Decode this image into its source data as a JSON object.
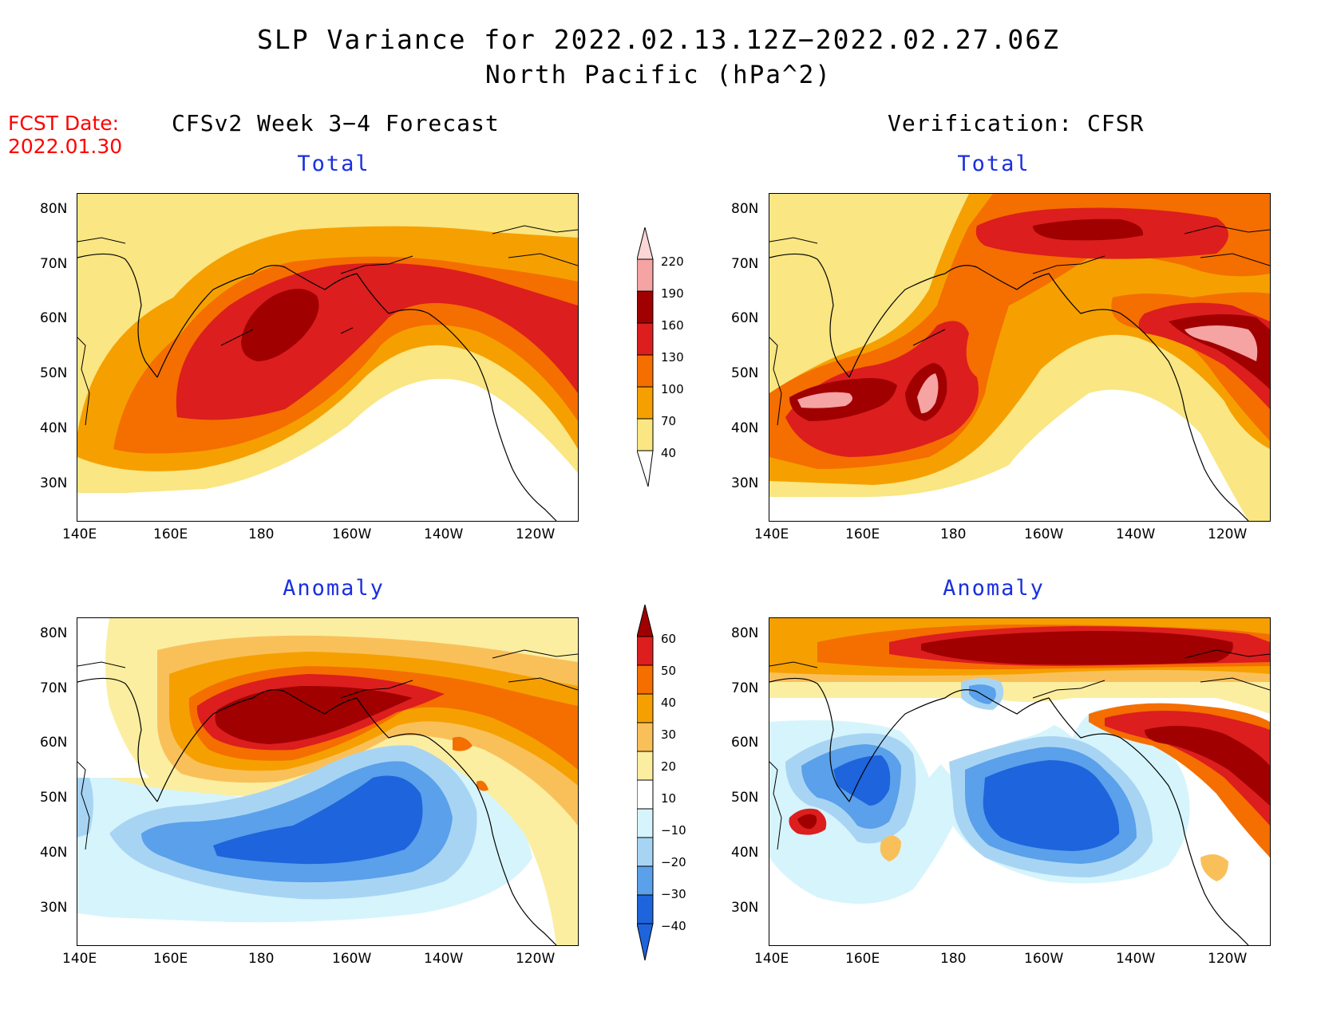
{
  "title": {
    "line1": "SLP Variance for 2022.02.13.12Z−2022.02.27.06Z",
    "line2": "North Pacific (hPa^2)"
  },
  "fcst": {
    "line1": "FCST Date:",
    "line2": "2022.01.30"
  },
  "left_header": "CFSv2 Week 3−4 Forecast",
  "right_header": "Verification: CFSR",
  "panels": {
    "tl": {
      "title": "Total"
    },
    "tr": {
      "title": "Total"
    },
    "bl": {
      "title": "Anomaly"
    },
    "br": {
      "title": "Anomaly"
    }
  },
  "axes": {
    "lat_labels": [
      "80N",
      "70N",
      "60N",
      "50N",
      "40N",
      "30N"
    ],
    "lon_labels": [
      "140E",
      "160E",
      "180",
      "160W",
      "140W",
      "120W"
    ]
  },
  "colorbar_total": {
    "labels": [
      "220",
      "190",
      "160",
      "130",
      "100",
      "70",
      "40"
    ],
    "colors": [
      "#f5a3a3",
      "#a00000",
      "#dc1e1e",
      "#f56e00",
      "#f5a000",
      "#fae682"
    ]
  },
  "colorbar_anomaly": {
    "labels": [
      "60",
      "50",
      "40",
      "30",
      "20",
      "10",
      "−10",
      "−20",
      "−30",
      "−40"
    ],
    "colors": [
      "#a00000",
      "#dc1e1e",
      "#f56e00",
      "#f5a000",
      "#f9c05a",
      "#fbeea0",
      "#ffffff",
      "#d6f4fc",
      "#a8d4f4",
      "#5aa0ea",
      "#1e64dc"
    ]
  },
  "chart_data": [
    {
      "type": "heatmap",
      "title": "Total",
      "xlabel": "",
      "ylabel": "",
      "xlim": [
        "140E",
        "110W"
      ],
      "ylim": [
        "25N",
        "85N"
      ],
      "levels": [
        40,
        70,
        100,
        130,
        160,
        190,
        220
      ],
      "features": [
        {
          "region": "max centre near 175E, 57N",
          "level": 160
        },
        {
          "region": "Gulf of Alaska to western Canada 50-65N",
          "level": 130
        }
      ]
    },
    {
      "type": "heatmap",
      "title": "Total",
      "xlabel": "",
      "ylabel": "",
      "xlim": [
        "140E",
        "110W"
      ],
      "ylim": [
        "25N",
        "85N"
      ],
      "levels": [
        40,
        70,
        100,
        130,
        160,
        190,
        220
      ],
      "features": [
        {
          "region": "near 150E, 45N",
          "level": 190
        },
        {
          "region": "near 180, 45N",
          "level": 190
        },
        {
          "region": "near 118W, 52N",
          "level": 190
        },
        {
          "region": "Arctic 160-170W, 80N",
          "level": 160
        }
      ]
    },
    {
      "type": "heatmap",
      "title": "Anomaly",
      "xlabel": "",
      "ylabel": "",
      "xlim": [
        "140E",
        "110W"
      ],
      "ylim": [
        "25N",
        "85N"
      ],
      "levels": [
        -40,
        -30,
        -20,
        -10,
        10,
        20,
        30,
        40,
        50,
        60
      ],
      "features": [
        {
          "region": "Alaska / Bering 60-70N",
          "level": 60
        },
        {
          "region": "central North Pacific 40-48N, 175E-140W",
          "level": -40
        }
      ]
    },
    {
      "type": "heatmap",
      "title": "Anomaly",
      "xlabel": "",
      "ylabel": "",
      "xlim": [
        "140E",
        "110W"
      ],
      "ylim": [
        "25N",
        "85N"
      ],
      "levels": [
        -40,
        -30,
        -20,
        -10,
        10,
        20,
        30,
        40,
        50,
        60
      ],
      "features": [
        {
          "region": "Arctic 80N",
          "level": 60
        },
        {
          "region": "western Canada 50-60N",
          "level": 60
        },
        {
          "region": "near 150E, 45N",
          "level": 60
        },
        {
          "region": "Gulf of Alaska / NE Pacific 40-55N",
          "level": -40
        },
        {
          "region": "Kamchatka / Bering 55-60N",
          "level": -40
        }
      ]
    }
  ]
}
